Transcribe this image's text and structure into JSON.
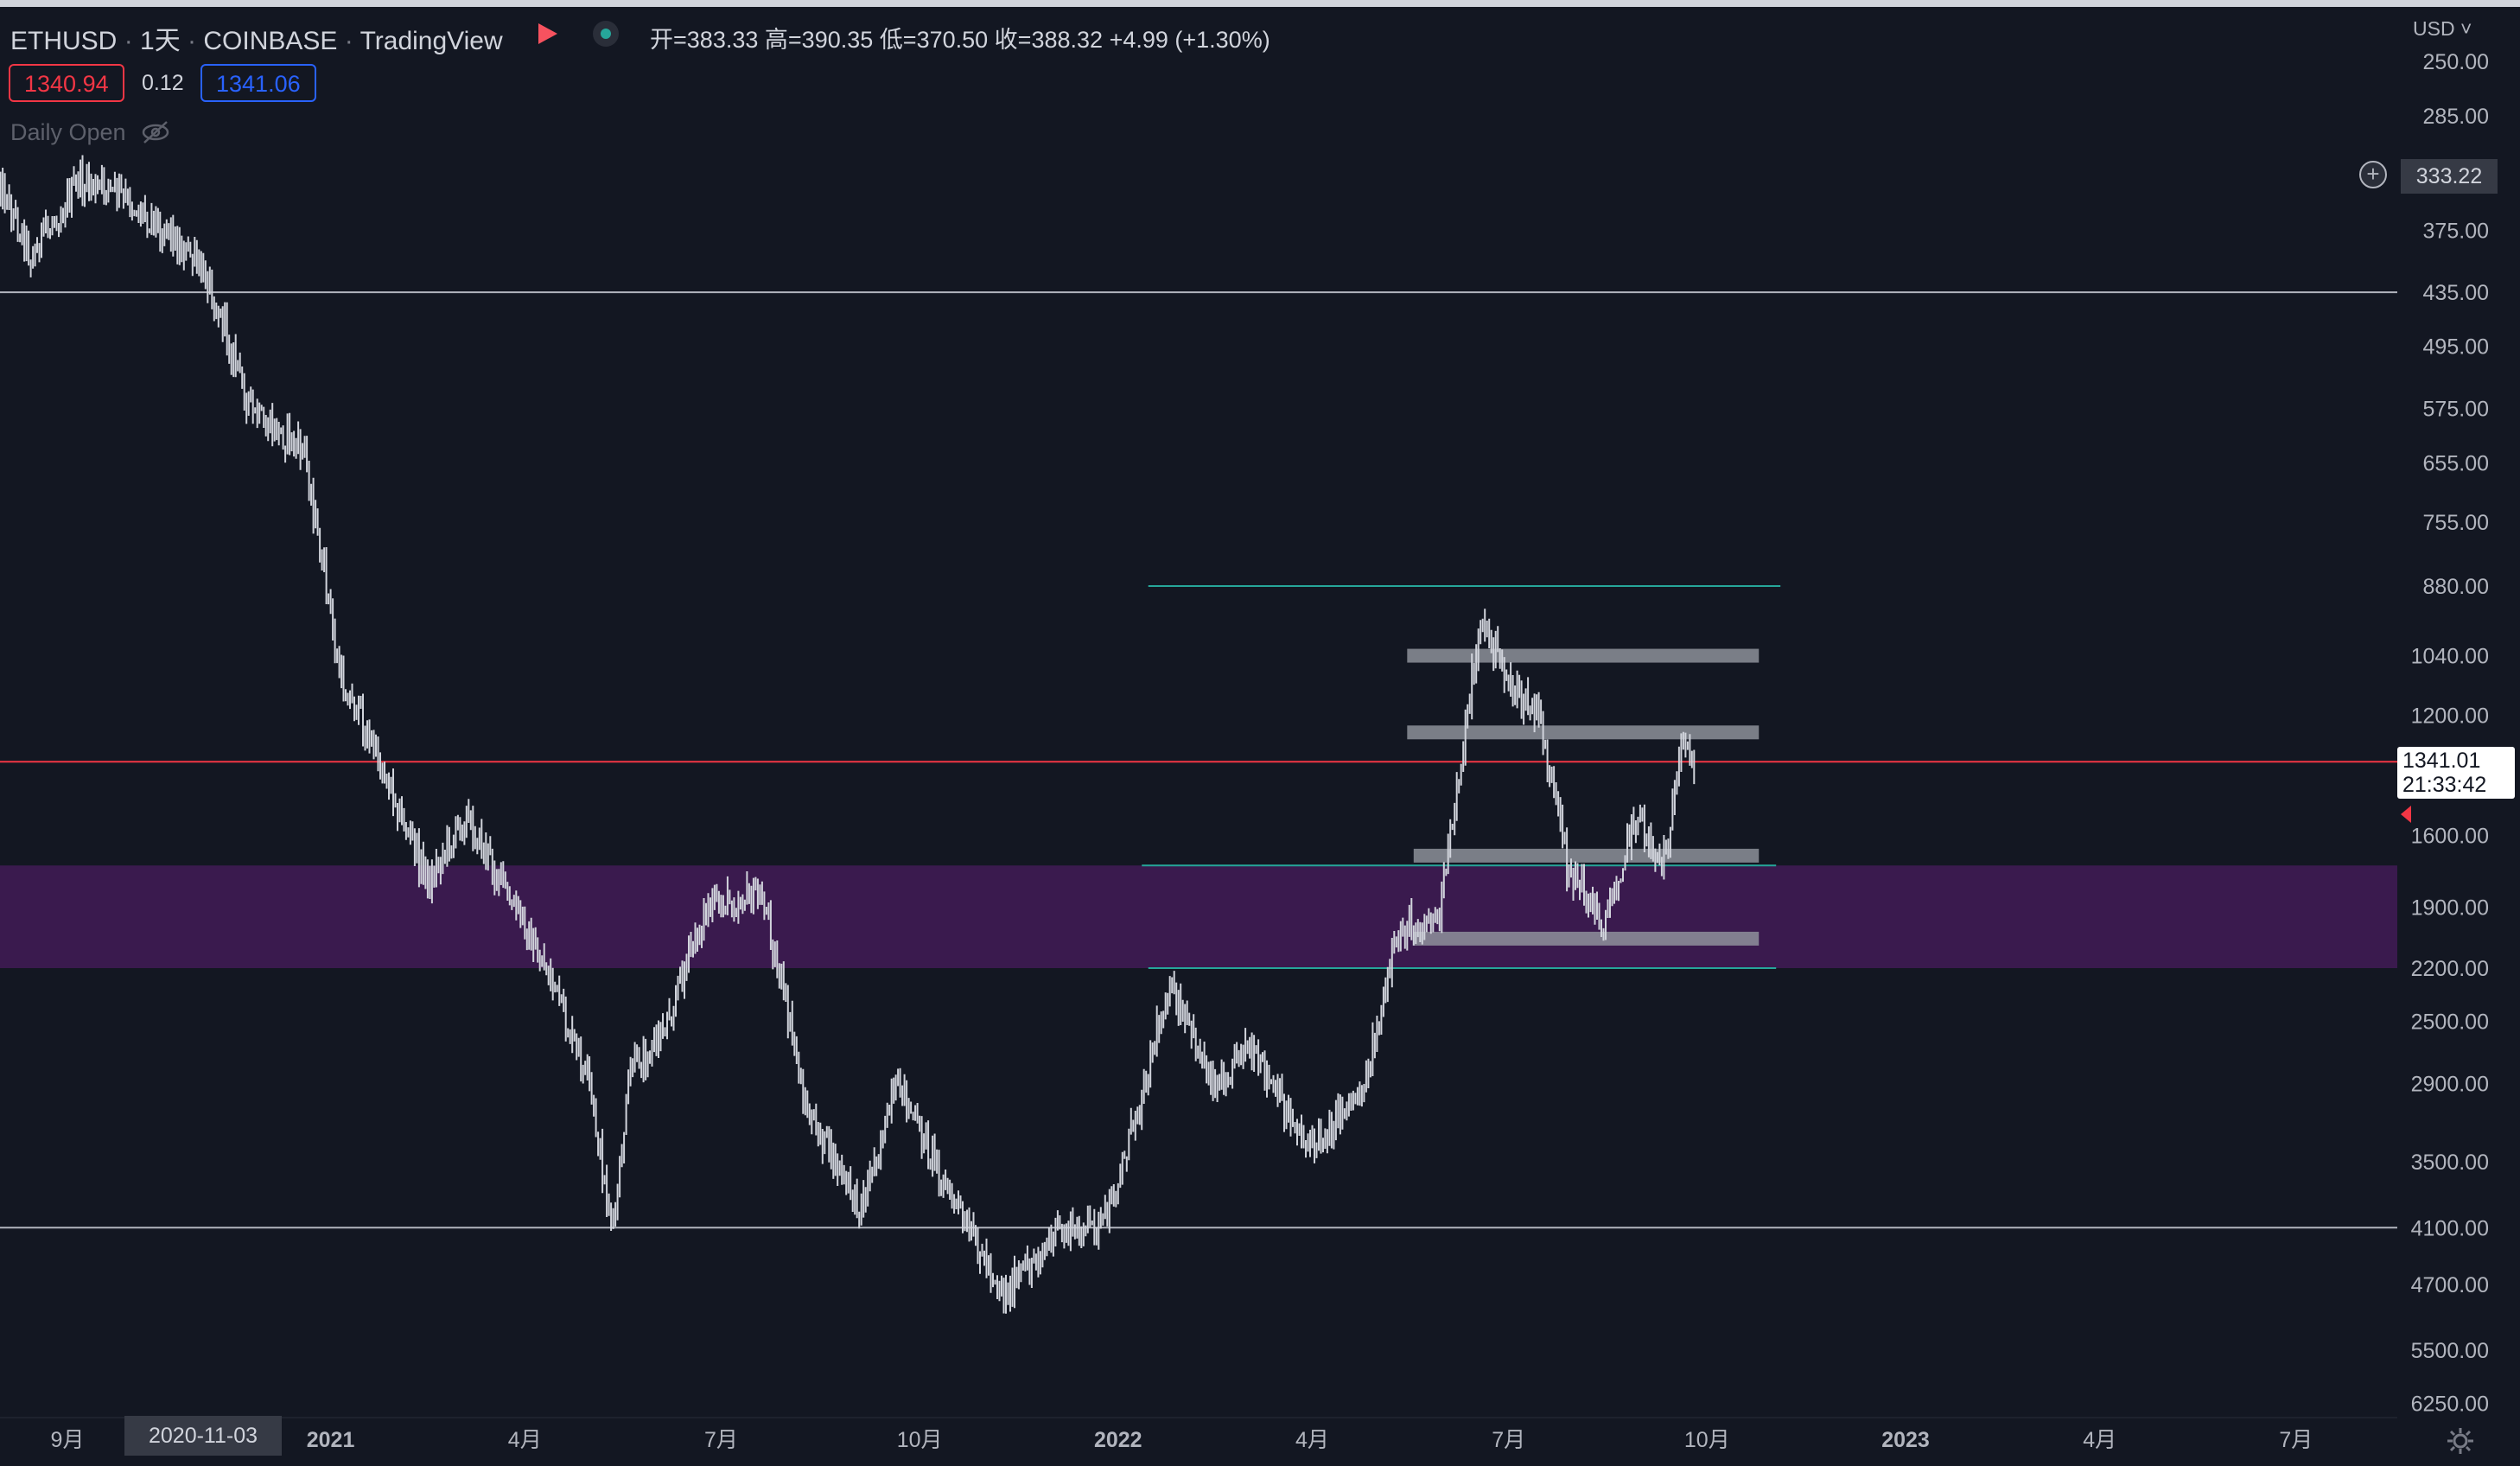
{
  "header": {
    "symbol": "ETHUSD",
    "interval": "1天",
    "exchange": "COINBASE",
    "platform": "TradingView",
    "ohlc": {
      "open_label": "开=",
      "open": "383.33",
      "high_label": "高=",
      "high": "390.35",
      "low_label": "低=",
      "low": "370.50",
      "close_label": "收=",
      "close": "388.32",
      "change": "+4.99 (+1.30%)"
    },
    "bid": "1340.94",
    "spread": "0.12",
    "ask": "1341.06",
    "indicator": "Daily Open"
  },
  "axis": {
    "currency": "USD",
    "crosshair_price": "333.22",
    "last_price": "1341.01",
    "countdown": "21:33:42",
    "date_marker": "2020-11-03"
  },
  "colors": {
    "background": "#131722",
    "candles": "#d1d4dc",
    "current_price_line": "#f23645",
    "zone": "#3a1a4e",
    "range_lines": "#26a69a",
    "horizontal_lines": "#b2b5be",
    "boxes": "#9598a1"
  },
  "chart_data": {
    "type": "line",
    "title": "",
    "price_scale": "inverted-log",
    "y_ticks": [
      "250.00",
      "285.00",
      "375.00",
      "435.00",
      "495.00",
      "575.00",
      "655.00",
      "755.00",
      "880.00",
      "1040.00",
      "1200.00",
      "1600.00",
      "1900.00",
      "2200.00",
      "2500.00",
      "2900.00",
      "3500.00",
      "4100.00",
      "4700.00",
      "5500.00",
      "6250.00"
    ],
    "x_ticks": [
      {
        "date": "2020-09-01",
        "label": "9月"
      },
      {
        "date": "2021-01-01",
        "label": "2021"
      },
      {
        "date": "2021-04-01",
        "label": "4月"
      },
      {
        "date": "2021-07-01",
        "label": "7月"
      },
      {
        "date": "2021-10-01",
        "label": "10月"
      },
      {
        "date": "2022-01-01",
        "label": "2022"
      },
      {
        "date": "2022-04-01",
        "label": "4月"
      },
      {
        "date": "2022-07-01",
        "label": "7月"
      },
      {
        "date": "2022-10-01",
        "label": "10月"
      },
      {
        "date": "2023-01-01",
        "label": "2023"
      },
      {
        "date": "2023-04-01",
        "label": "4月"
      },
      {
        "date": "2023-07-01",
        "label": "7月"
      }
    ],
    "series": [
      {
        "values": [
          {
            "x": "2020-07-31",
            "y": 330
          },
          {
            "x": "2020-08-15",
            "y": 400
          },
          {
            "x": "2020-09-05",
            "y": 335
          },
          {
            "x": "2020-09-25",
            "y": 345
          },
          {
            "x": "2020-10-20",
            "y": 380
          },
          {
            "x": "2020-11-05",
            "y": 420
          },
          {
            "x": "2020-11-25",
            "y": 580
          },
          {
            "x": "2020-12-20",
            "y": 640
          },
          {
            "x": "2021-01-05",
            "y": 1080
          },
          {
            "x": "2021-01-25",
            "y": 1360
          },
          {
            "x": "2021-02-15",
            "y": 1790
          },
          {
            "x": "2021-03-05",
            "y": 1530
          },
          {
            "x": "2021-03-20",
            "y": 1780
          },
          {
            "x": "2021-04-10",
            "y": 2160
          },
          {
            "x": "2021-05-01",
            "y": 2950
          },
          {
            "x": "2021-05-12",
            "y": 4170
          },
          {
            "x": "2021-05-20",
            "y": 2780
          },
          {
            "x": "2021-06-01",
            "y": 2640
          },
          {
            "x": "2021-06-25",
            "y": 1900
          },
          {
            "x": "2021-07-20",
            "y": 1830
          },
          {
            "x": "2021-08-10",
            "y": 3100
          },
          {
            "x": "2021-09-03",
            "y": 3940
          },
          {
            "x": "2021-09-21",
            "y": 2900
          },
          {
            "x": "2021-10-15",
            "y": 3800
          },
          {
            "x": "2021-11-09",
            "y": 4810
          },
          {
            "x": "2021-12-04",
            "y": 4150
          },
          {
            "x": "2021-12-25",
            "y": 4100
          },
          {
            "x": "2022-01-10",
            "y": 3100
          },
          {
            "x": "2022-01-24",
            "y": 2300
          },
          {
            "x": "2022-02-15",
            "y": 2900
          },
          {
            "x": "2022-03-01",
            "y": 2650
          },
          {
            "x": "2022-04-01",
            "y": 3400
          },
          {
            "x": "2022-04-25",
            "y": 2900
          },
          {
            "x": "2022-05-12",
            "y": 2000
          },
          {
            "x": "2022-05-30",
            "y": 1950
          },
          {
            "x": "2022-06-14",
            "y": 1100
          },
          {
            "x": "2022-06-18",
            "y": 960
          },
          {
            "x": "2022-07-05",
            "y": 1150
          },
          {
            "x": "2022-07-15",
            "y": 1200
          },
          {
            "x": "2022-07-28",
            "y": 1720
          },
          {
            "x": "2022-08-14",
            "y": 1980
          },
          {
            "x": "2022-08-29",
            "y": 1530
          },
          {
            "x": "2022-09-10",
            "y": 1720
          },
          {
            "x": "2022-09-20",
            "y": 1300
          },
          {
            "x": "2022-09-26",
            "y": 1341
          }
        ]
      }
    ],
    "horizontal_levels": [
      435,
      1341,
      4100
    ],
    "zone": {
      "from": 1720,
      "to": 2200
    },
    "range_lines": [
      {
        "price": 880,
        "from": "2022-01-15",
        "to": "2022-11-04"
      },
      {
        "price": 1720,
        "from": "2022-01-12",
        "to": "2022-11-02"
      },
      {
        "price": 2200,
        "from": "2022-01-15",
        "to": "2022-11-02"
      }
    ],
    "rect_levels": [
      {
        "price": 1040,
        "from": "2022-05-15",
        "to": "2022-10-25"
      },
      {
        "price": 1250,
        "from": "2022-05-15",
        "to": "2022-10-25"
      },
      {
        "price": 1680,
        "from": "2022-05-18",
        "to": "2022-10-25"
      },
      {
        "price": 2050,
        "from": "2022-05-18",
        "to": "2022-10-25"
      }
    ]
  }
}
